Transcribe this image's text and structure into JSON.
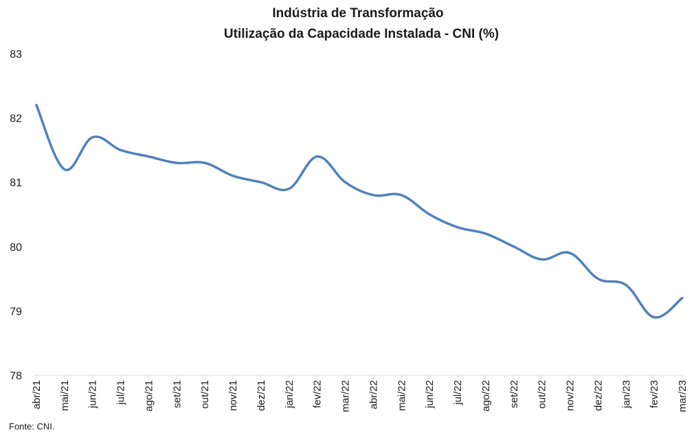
{
  "chart_data": {
    "type": "line",
    "title": "Indústria de Transformação",
    "subtitle": "Utilização da Capacidade Instalada - CNI (%)",
    "xlabel": "",
    "ylabel": "",
    "ylim": [
      78,
      83
    ],
    "yticks": [
      "78",
      "79",
      "80",
      "81",
      "82",
      "83"
    ],
    "grid": false,
    "categories": [
      "abr/21",
      "mai/21",
      "jun/21",
      "jul/21",
      "ago/21",
      "set/21",
      "out/21",
      "nov/21",
      "dez/21",
      "jan/22",
      "fev/22",
      "mar/22",
      "abr/22",
      "mai/22",
      "jun/22",
      "jul/22",
      "ago/22",
      "set/22",
      "out/22",
      "nov/22",
      "dez/22",
      "jan/23",
      "fev/23",
      "mar/23"
    ],
    "series": [
      {
        "values": [
          82.2,
          81.2,
          81.7,
          81.5,
          81.4,
          81.3,
          81.3,
          81.1,
          81.0,
          80.9,
          81.4,
          81.0,
          80.8,
          80.8,
          80.5,
          80.3,
          80.2,
          80.0,
          79.8,
          79.9,
          79.5,
          79.4,
          78.9,
          79.2
        ],
        "color": "#4f81bd"
      }
    ],
    "source": "Fonte: CNI."
  }
}
